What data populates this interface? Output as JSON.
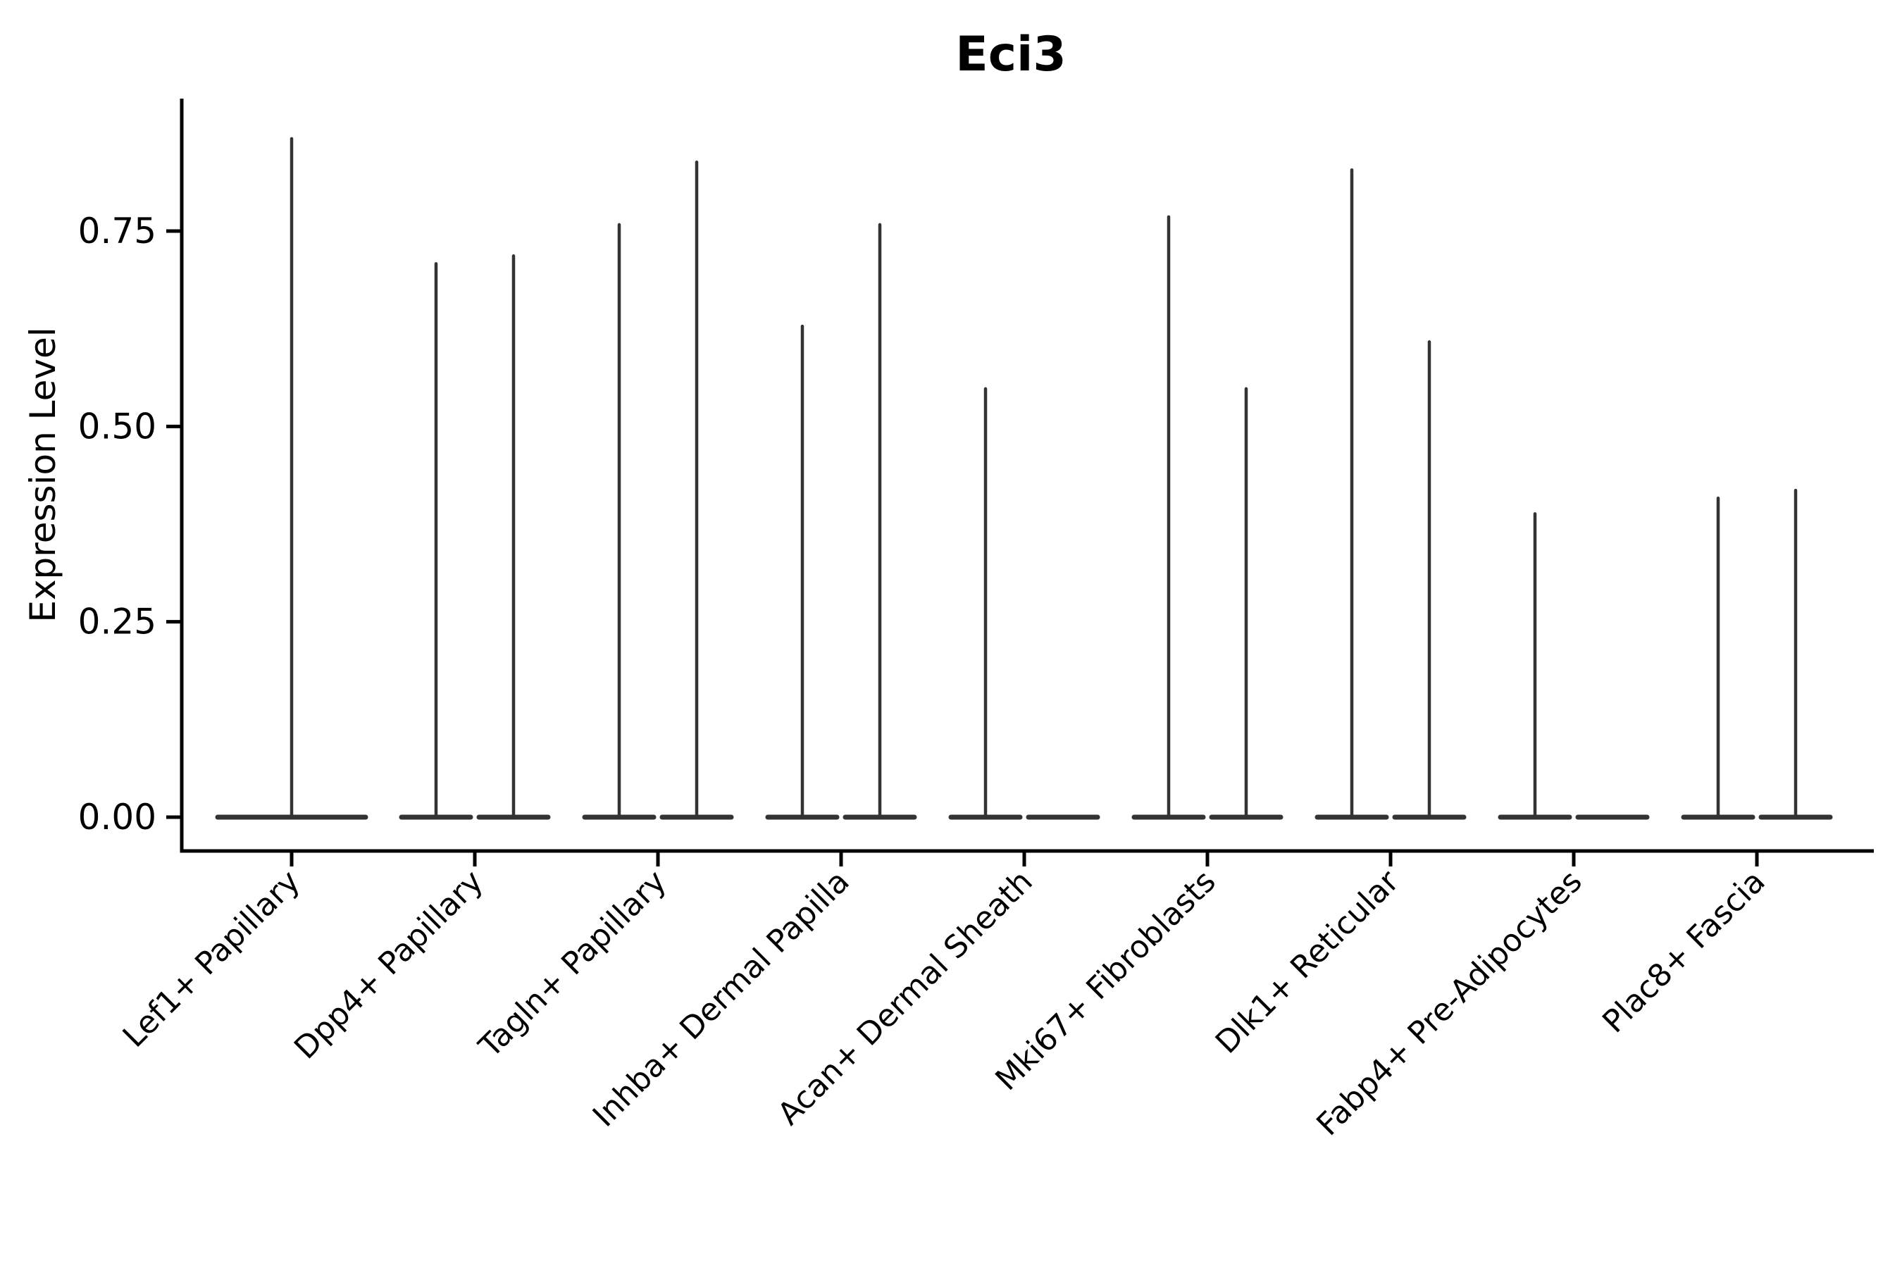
{
  "title": "Eci3",
  "axes": {
    "y_label": "Expression Level",
    "y_ticks": [
      "0.00",
      "0.25",
      "0.50",
      "0.75"
    ],
    "y_tick_values": [
      0.0,
      0.25,
      0.5,
      0.75
    ],
    "x_tick_label_rotation_deg": 45
  },
  "colors": {
    "violin_line": "#333333",
    "axis_line": "#000000",
    "text": "#000000",
    "background": "#ffffff"
  },
  "chart_data": {
    "type": "violin",
    "title": "Eci3",
    "xlabel": "",
    "ylabel": "Expression Level",
    "ylim": [
      0,
      0.92
    ],
    "grid": false,
    "legend": "none",
    "description": "Needle-shaped violins: wide flat base at expression 0 with a thin spike up to the max expression value. Categories with two violins show left/right pairs; a max of 0 means a flat base-only violin; a single centered violin spans the full category width.",
    "categories": [
      "Lef1+ Papillary",
      "Dpp4+ Papillary",
      "Tagln+ Papillary",
      "Inhba+ Dermal Papilla",
      "Acan+ Dermal Sheath",
      "Mki67+ Fibroblasts",
      "Dlk1+ Reticular",
      "Fabp4+ Pre-Adipocytes",
      "Plac8+ Fascia"
    ],
    "series": [
      {
        "category": "Lef1+ Papillary",
        "violins": [
          {
            "position": "center",
            "max_expression": 0.87
          }
        ]
      },
      {
        "category": "Dpp4+ Papillary",
        "violins": [
          {
            "position": "left",
            "max_expression": 0.71
          },
          {
            "position": "right",
            "max_expression": 0.72
          }
        ]
      },
      {
        "category": "Tagln+ Papillary",
        "violins": [
          {
            "position": "left",
            "max_expression": 0.76
          },
          {
            "position": "right",
            "max_expression": 0.84
          }
        ]
      },
      {
        "category": "Inhba+ Dermal Papilla",
        "violins": [
          {
            "position": "left",
            "max_expression": 0.63
          },
          {
            "position": "right",
            "max_expression": 0.76
          }
        ]
      },
      {
        "category": "Acan+ Dermal Sheath",
        "violins": [
          {
            "position": "left",
            "max_expression": 0.55
          },
          {
            "position": "right",
            "max_expression": 0.0
          }
        ]
      },
      {
        "category": "Mki67+ Fibroblasts",
        "violins": [
          {
            "position": "left",
            "max_expression": 0.77
          },
          {
            "position": "right",
            "max_expression": 0.55
          }
        ]
      },
      {
        "category": "Dlk1+ Reticular",
        "violins": [
          {
            "position": "left",
            "max_expression": 0.83
          },
          {
            "position": "right",
            "max_expression": 0.61
          }
        ]
      },
      {
        "category": "Fabp4+ Pre-Adipocytes",
        "violins": [
          {
            "position": "left",
            "max_expression": 0.39
          },
          {
            "position": "right",
            "max_expression": 0.0
          }
        ]
      },
      {
        "category": "Plac8+ Fascia",
        "violins": [
          {
            "position": "left",
            "max_expression": 0.41
          },
          {
            "position": "right",
            "max_expression": 0.42
          }
        ]
      }
    ]
  }
}
